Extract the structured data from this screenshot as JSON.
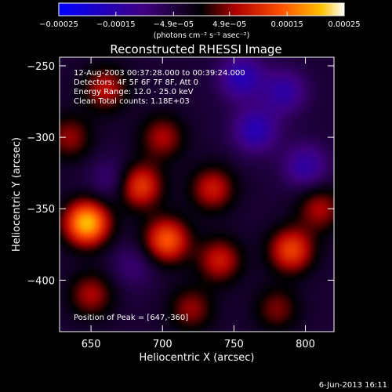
{
  "chart_data": {
    "type": "heatmap",
    "title": "Reconstructed RHESSI Image",
    "xlabel": "Heliocentric X (arcsec)",
    "ylabel": "Heliocentric Y (arcsec)",
    "xlim": [
      628,
      820
    ],
    "ylim": [
      -436,
      -244
    ],
    "x_ticks": [
      650,
      700,
      750,
      800
    ],
    "x_tick_labels": [
      "650",
      "700",
      "750",
      "800"
    ],
    "y_ticks": [
      -250,
      -300,
      -350,
      -400
    ],
    "y_tick_labels": [
      "−250",
      "−300",
      "−350",
      "−400"
    ],
    "colorbar": {
      "min": -0.00025,
      "max": 0.00025,
      "ticks": [
        -0.00025,
        -0.00015,
        -4.9e-05,
        4.9e-05,
        0.00015,
        0.00025
      ],
      "tick_labels": [
        "−0.00025",
        "−0.00015",
        "−4.9e−05",
        "4.9e−05",
        "0.00015",
        "0.00025"
      ],
      "unit_label": "(photons cm⁻² s⁻¹ asec⁻²)",
      "colormap": [
        "#0000ff",
        "#400080",
        "#000000",
        "#b00000",
        "#ff5000",
        "#ffc000",
        "#ffffff"
      ]
    },
    "annotations": [
      "12-Aug-2003 00:37:28.000 to 00:39:24.000",
      "Detectors: 4F 5F 6F 7F 8F, Att 0",
      "Energy Range: 12.0 - 25.0 keV",
      "Clean     Total counts: 1.18E+03"
    ],
    "peak_label": "Position of Peak = [647,-360]",
    "sources": [
      {
        "x": 647,
        "y": -360,
        "value": 0.00025
      },
      {
        "x": 703,
        "y": -372,
        "value": 0.00018
      },
      {
        "x": 684,
        "y": -334,
        "value": 0.00016
      },
      {
        "x": 790,
        "y": -379,
        "value": 0.00016
      },
      {
        "x": 735,
        "y": -336,
        "value": 0.00012
      },
      {
        "x": 740,
        "y": -386,
        "value": 0.00012
      },
      {
        "x": 660,
        "y": -266,
        "value": 0.00011
      },
      {
        "x": 810,
        "y": -350,
        "value": 0.0001
      },
      {
        "x": 700,
        "y": -300,
        "value": 0.0001
      },
      {
        "x": 650,
        "y": -410,
        "value": 0.0001
      },
      {
        "x": 720,
        "y": -420,
        "value": 9e-05
      },
      {
        "x": 635,
        "y": -300,
        "value": 9e-05
      },
      {
        "x": 780,
        "y": -420,
        "value": 8e-05
      },
      {
        "x": 765,
        "y": -295,
        "value": -0.00012
      },
      {
        "x": 755,
        "y": -258,
        "value": -0.00012
      },
      {
        "x": 800,
        "y": -320,
        "value": -0.0001
      },
      {
        "x": 665,
        "y": -330,
        "value": -6e-05
      },
      {
        "x": 785,
        "y": -268,
        "value": -0.0001
      },
      {
        "x": 680,
        "y": -390,
        "value": -5e-05
      }
    ]
  },
  "footer_date": "6-Jun-2013 16:11"
}
